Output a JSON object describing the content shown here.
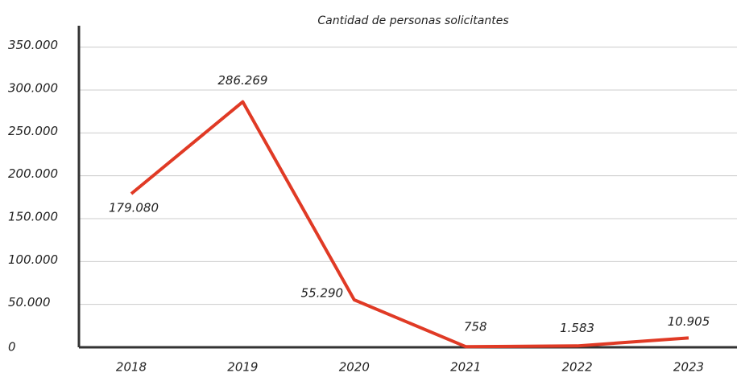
{
  "chart_data": {
    "type": "line",
    "title": "Cantidad de personas solicitantes",
    "categories": [
      "2018",
      "2019",
      "2020",
      "2021",
      "2022",
      "2023"
    ],
    "series": [
      {
        "name": "Cantidad de personas solicitantes",
        "color": "#e03a25",
        "values": [
          179080,
          286269,
          55290,
          758,
          1583,
          10905
        ],
        "value_labels": [
          "179.080",
          "286.269",
          "55.290",
          "758",
          "1.583",
          "10.905"
        ]
      }
    ],
    "ylim": [
      0,
      375000
    ],
    "yticks": [
      0,
      {
        "value": 50000,
        "label": "50.000"
      },
      {
        "value": 100000,
        "label": "100.000"
      },
      {
        "value": 150000,
        "label": "150.000"
      },
      {
        "value": 200000,
        "label": "200.000"
      },
      {
        "value": 250000,
        "label": "250.000"
      },
      {
        "value": 300000,
        "label": "300.000"
      },
      {
        "value": 350000,
        "label": "350.000"
      }
    ],
    "grid": true
  }
}
